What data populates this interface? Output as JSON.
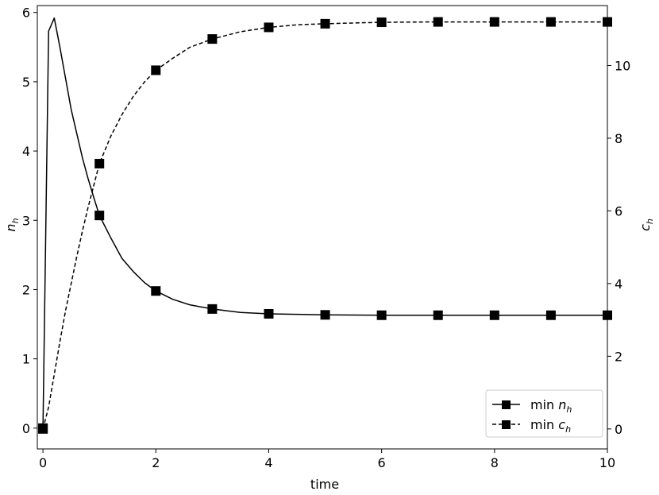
{
  "chart_data": {
    "type": "line",
    "xlabel": "time",
    "ylabel_left": {
      "base": "n",
      "sub": "h"
    },
    "ylabel_right": {
      "base": "c",
      "sub": "h"
    },
    "xlim": [
      -0.1,
      10
    ],
    "ylim_left": [
      -0.3,
      6.1
    ],
    "ylim_right": [
      -0.55,
      11.65
    ],
    "x_ticks": [
      0,
      2,
      4,
      6,
      8,
      10
    ],
    "y_ticks_left": [
      0,
      1,
      2,
      3,
      4,
      5,
      6
    ],
    "y_ticks_right": [
      0,
      2,
      4,
      6,
      8,
      10
    ],
    "grid": false,
    "legend_position": "lower-right",
    "series": [
      {
        "name": {
          "prefix": "min ",
          "base": "n",
          "sub": "h"
        },
        "axis": "left",
        "line_style": "solid",
        "marker": "square",
        "curve": [
          {
            "x": 0,
            "y": 0
          },
          {
            "x": 0.1,
            "y": 5.73
          },
          {
            "x": 0.2,
            "y": 5.92
          },
          {
            "x": 0.3,
            "y": 5.5
          },
          {
            "x": 0.4,
            "y": 5.05
          },
          {
            "x": 0.5,
            "y": 4.6
          },
          {
            "x": 0.6,
            "y": 4.25
          },
          {
            "x": 0.7,
            "y": 3.9
          },
          {
            "x": 0.8,
            "y": 3.6
          },
          {
            "x": 0.9,
            "y": 3.33
          },
          {
            "x": 1.0,
            "y": 3.07
          },
          {
            "x": 1.2,
            "y": 2.75
          },
          {
            "x": 1.4,
            "y": 2.45
          },
          {
            "x": 1.6,
            "y": 2.26
          },
          {
            "x": 1.8,
            "y": 2.1
          },
          {
            "x": 2.0,
            "y": 1.98
          },
          {
            "x": 2.3,
            "y": 1.86
          },
          {
            "x": 2.6,
            "y": 1.78
          },
          {
            "x": 3.0,
            "y": 1.72
          },
          {
            "x": 3.5,
            "y": 1.67
          },
          {
            "x": 4.0,
            "y": 1.65
          },
          {
            "x": 5.0,
            "y": 1.635
          },
          {
            "x": 6.0,
            "y": 1.63
          },
          {
            "x": 7.0,
            "y": 1.63
          },
          {
            "x": 8.0,
            "y": 1.63
          },
          {
            "x": 9.0,
            "y": 1.63
          },
          {
            "x": 10.0,
            "y": 1.63
          }
        ],
        "markers": [
          {
            "x": 0,
            "y": 0
          },
          {
            "x": 1,
            "y": 3.07
          },
          {
            "x": 2,
            "y": 1.98
          },
          {
            "x": 3,
            "y": 1.72
          },
          {
            "x": 4,
            "y": 1.65
          },
          {
            "x": 5,
            "y": 1.635
          },
          {
            "x": 6,
            "y": 1.63
          },
          {
            "x": 7,
            "y": 1.63
          },
          {
            "x": 8,
            "y": 1.63
          },
          {
            "x": 9,
            "y": 1.63
          },
          {
            "x": 10,
            "y": 1.63
          }
        ]
      },
      {
        "name": {
          "prefix": "min ",
          "base": "c",
          "sub": "h"
        },
        "axis": "right",
        "line_style": "dashed",
        "marker": "square",
        "curve": [
          {
            "x": 0,
            "y": 0
          },
          {
            "x": 0.1,
            "y": 0.6
          },
          {
            "x": 0.2,
            "y": 1.5
          },
          {
            "x": 0.3,
            "y": 2.4
          },
          {
            "x": 0.4,
            "y": 3.25
          },
          {
            "x": 0.5,
            "y": 4.0
          },
          {
            "x": 0.6,
            "y": 4.75
          },
          {
            "x": 0.7,
            "y": 5.45
          },
          {
            "x": 0.8,
            "y": 6.1
          },
          {
            "x": 0.9,
            "y": 6.7
          },
          {
            "x": 1.0,
            "y": 7.3
          },
          {
            "x": 1.2,
            "y": 8.05
          },
          {
            "x": 1.4,
            "y": 8.65
          },
          {
            "x": 1.6,
            "y": 9.15
          },
          {
            "x": 1.8,
            "y": 9.55
          },
          {
            "x": 2.0,
            "y": 9.87
          },
          {
            "x": 2.3,
            "y": 10.2
          },
          {
            "x": 2.6,
            "y": 10.5
          },
          {
            "x": 3.0,
            "y": 10.73
          },
          {
            "x": 3.5,
            "y": 10.93
          },
          {
            "x": 4.0,
            "y": 11.05
          },
          {
            "x": 4.5,
            "y": 11.12
          },
          {
            "x": 5.0,
            "y": 11.15
          },
          {
            "x": 6.0,
            "y": 11.19
          },
          {
            "x": 7.0,
            "y": 11.2
          },
          {
            "x": 8.0,
            "y": 11.2
          },
          {
            "x": 9.0,
            "y": 11.2
          },
          {
            "x": 10.0,
            "y": 11.2
          }
        ],
        "markers": [
          {
            "x": 0,
            "y": 0
          },
          {
            "x": 1,
            "y": 7.3
          },
          {
            "x": 2,
            "y": 9.87
          },
          {
            "x": 3,
            "y": 10.73
          },
          {
            "x": 4,
            "y": 11.05
          },
          {
            "x": 5,
            "y": 11.15
          },
          {
            "x": 6,
            "y": 11.19
          },
          {
            "x": 7,
            "y": 11.2
          },
          {
            "x": 8,
            "y": 11.2
          },
          {
            "x": 9,
            "y": 11.2
          },
          {
            "x": 10,
            "y": 11.2
          }
        ]
      }
    ]
  }
}
